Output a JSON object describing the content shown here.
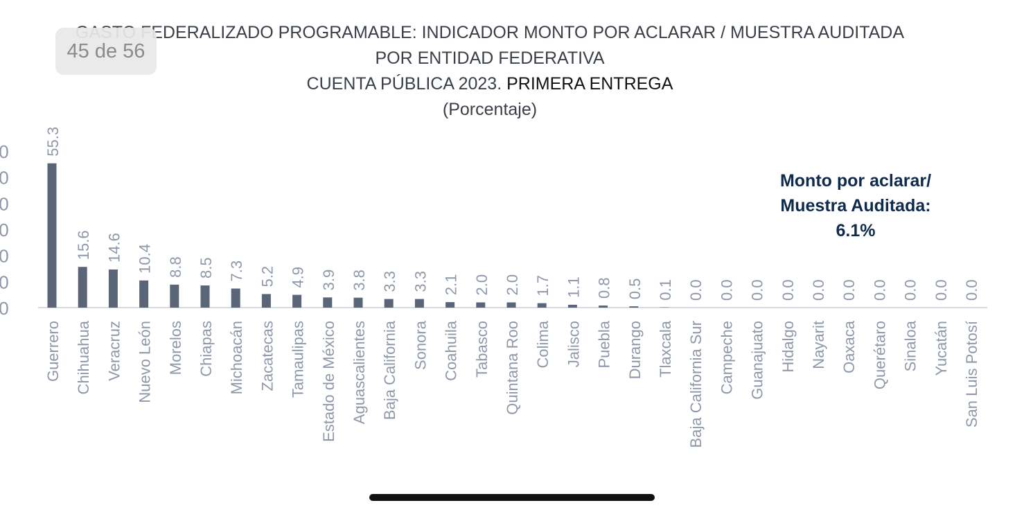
{
  "page_indicator": "45 de 56",
  "title": {
    "line1": "GASTO FEDERALIZADO PROGRAMABLE: INDICADOR MONTO POR ACLARAR / MUESTRA AUDITADA",
    "line2": "POR ENTIDAD FEDERATIVA",
    "line3_part1": "CUENTA PÚBLICA 2023. ",
    "line3_part2": "PRIMERA ENTREGA",
    "line4": "(Porcentaje)"
  },
  "annotation": {
    "line1": "Monto por aclarar/",
    "line2": "Muestra Auditada:",
    "line3": "6.1%"
  },
  "colors": {
    "bar": "#5a6577",
    "labels": "#8e98a8",
    "axis": "#d6dbe2",
    "title": "#3a3f47",
    "annotation": "#102a4c"
  },
  "chart_data": {
    "type": "bar",
    "categories": [
      "Guerrero",
      "Chihuahua",
      "Veracruz",
      "Nuevo León",
      "Morelos",
      "Chiapas",
      "Michoacán",
      "Zacatecas",
      "Tamaulipas",
      "Estado de México",
      "Aguascalientes",
      "Baja California",
      "Sonora",
      "Coahuila",
      "Tabasco",
      "Quintana Roo",
      "Colima",
      "Jalisco",
      "Puebla",
      "Durango",
      "Tlaxcala",
      "Baja California Sur",
      "Campeche",
      "Guanajuato",
      "Hidalgo",
      "Nayarit",
      "Oaxaca",
      "Querétaro",
      "Sinaloa",
      "Yucatán",
      "San Luis Potosí"
    ],
    "values": [
      55.3,
      15.6,
      14.6,
      10.4,
      8.8,
      8.5,
      7.3,
      5.2,
      4.9,
      3.9,
      3.8,
      3.3,
      3.3,
      2.1,
      2.0,
      2.0,
      1.7,
      1.1,
      0.8,
      0.5,
      0.1,
      0.0,
      0.0,
      0.0,
      0.0,
      0.0,
      0.0,
      0.0,
      0.0,
      0.0,
      0.0
    ],
    "value_labels": [
      "55.3",
      "15.6",
      "14.6",
      "10.4",
      "8.8",
      "8.5",
      "7.3",
      "5.2",
      "4.9",
      "3.9",
      "3.8",
      "3.3",
      "3.3",
      "2.1",
      "2.0",
      "2.0",
      "1.7",
      "1.1",
      "0.8",
      "0.5",
      "0.1",
      "0.0",
      "0.0",
      "0.0",
      "0.0",
      "0.0",
      "0.0",
      "0.0",
      "0.0",
      "0.0",
      "0.0"
    ],
    "ytick_labels": [
      ".0",
      ".0",
      ".0",
      ".0",
      ".0",
      ".0",
      ".0"
    ],
    "ylim": [
      0,
      60
    ],
    "ytick_values": [
      0,
      10,
      20,
      30,
      40,
      50,
      60
    ],
    "xlabel": "",
    "ylabel": "",
    "grid": false
  }
}
